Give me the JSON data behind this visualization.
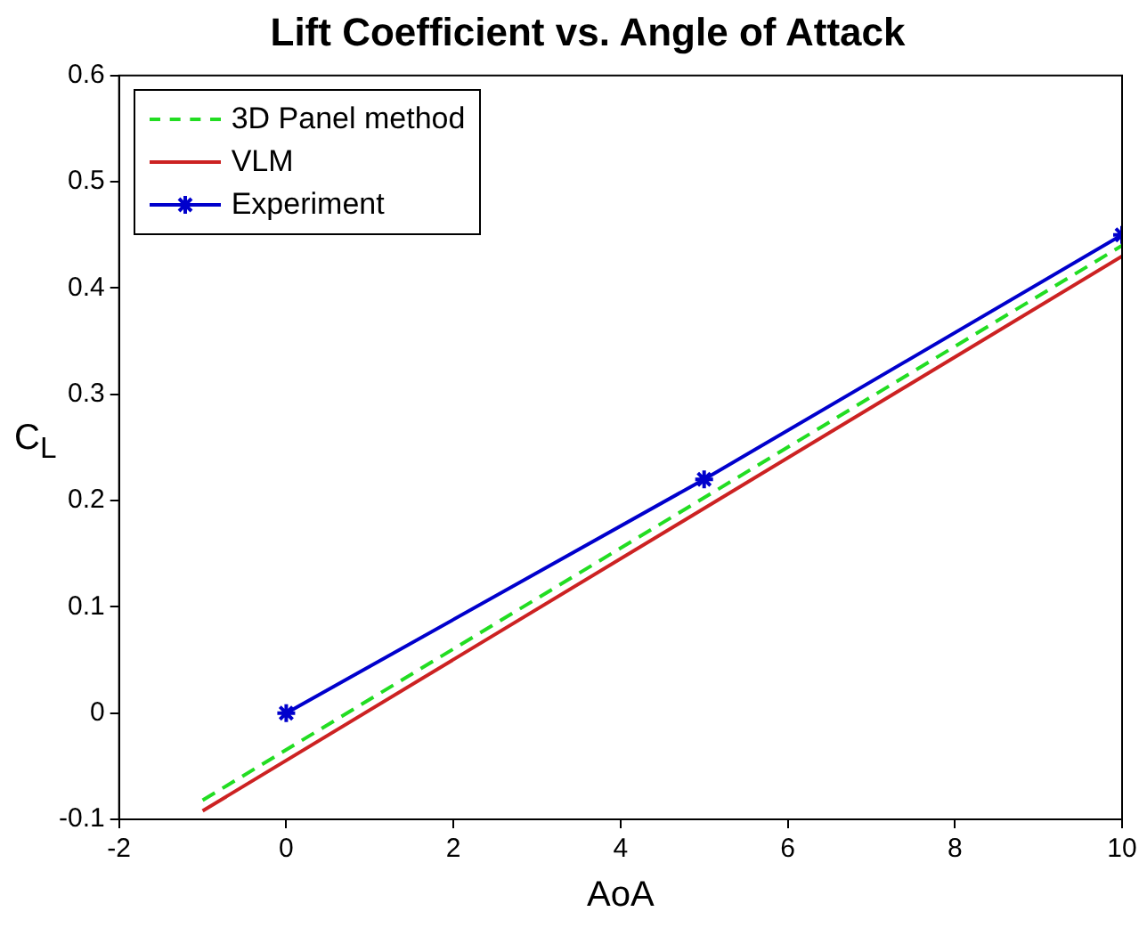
{
  "chart_data": {
    "type": "line",
    "title": "Lift Coefficient vs. Angle of Attack",
    "xlabel": "AoA",
    "ylabel": "C$_{L}$",
    "xlim": [
      -2,
      10
    ],
    "xticks": [
      -2,
      0,
      2,
      4,
      6,
      8,
      10
    ],
    "ylim": [
      -0.1,
      0.6
    ],
    "yticks": [
      -0.1,
      0,
      0.1,
      0.2,
      0.3,
      0.4,
      0.5,
      0.6
    ],
    "grid": false,
    "legend": "top left",
    "series": [
      {
        "name": "3D Panel method",
        "color": "#22dd22",
        "x": [
          -1,
          10
        ],
        "values": [
          -0.082,
          0.44
        ],
        "line_style": "dashed",
        "marker": "none"
      },
      {
        "name": "VLM",
        "color": "#cc2222",
        "x": [
          -1,
          10
        ],
        "values": [
          -0.092,
          0.43
        ],
        "line_style": "solid",
        "marker": "none"
      },
      {
        "name": "Experiment",
        "color": "#0000cc",
        "x": [
          0,
          5,
          10
        ],
        "values": [
          0,
          0.22,
          0.45
        ],
        "line_style": "solid",
        "marker": "cross"
      }
    ]
  }
}
